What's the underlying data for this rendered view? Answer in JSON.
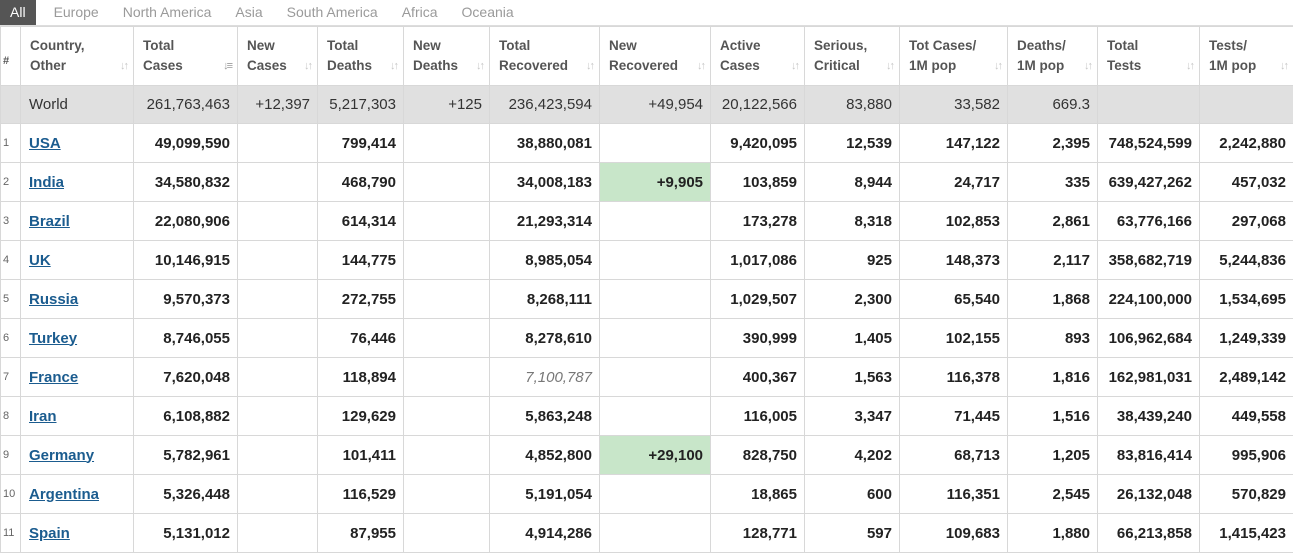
{
  "tabs": [
    "All",
    "Europe",
    "North America",
    "Asia",
    "South America",
    "Africa",
    "Oceania"
  ],
  "columns": [
    {
      "l1": "#",
      "l2": ""
    },
    {
      "l1": "Country,",
      "l2": "Other"
    },
    {
      "l1": "Total",
      "l2": "Cases"
    },
    {
      "l1": "New",
      "l2": "Cases"
    },
    {
      "l1": "Total",
      "l2": "Deaths"
    },
    {
      "l1": "New",
      "l2": "Deaths"
    },
    {
      "l1": "Total",
      "l2": "Recovered"
    },
    {
      "l1": "New",
      "l2": "Recovered"
    },
    {
      "l1": "Active",
      "l2": "Cases"
    },
    {
      "l1": "Serious,",
      "l2": "Critical"
    },
    {
      "l1": "Tot Cases/",
      "l2": "1M pop"
    },
    {
      "l1": "Deaths/",
      "l2": "1M pop"
    },
    {
      "l1": "Total",
      "l2": "Tests"
    },
    {
      "l1": "Tests/",
      "l2": "1M pop"
    }
  ],
  "world": [
    "",
    "World",
    "261,763,463",
    "+12,397",
    "5,217,303",
    "+125",
    "236,423,594",
    "+49,954",
    "20,122,566",
    "83,880",
    "33,582",
    "669.3",
    "",
    ""
  ],
  "rows": [
    [
      "1",
      "USA",
      "49,099,590",
      "",
      "799,414",
      "",
      "38,880,081",
      "",
      "9,420,095",
      "12,539",
      "147,122",
      "2,395",
      "748,524,599",
      "2,242,880"
    ],
    [
      "2",
      "India",
      "34,580,832",
      "",
      "468,790",
      "",
      "34,008,183",
      "+9,905",
      "103,859",
      "8,944",
      "24,717",
      "335",
      "639,427,262",
      "457,032"
    ],
    [
      "3",
      "Brazil",
      "22,080,906",
      "",
      "614,314",
      "",
      "21,293,314",
      "",
      "173,278",
      "8,318",
      "102,853",
      "2,861",
      "63,776,166",
      "297,068"
    ],
    [
      "4",
      "UK",
      "10,146,915",
      "",
      "144,775",
      "",
      "8,985,054",
      "",
      "1,017,086",
      "925",
      "148,373",
      "2,117",
      "358,682,719",
      "5,244,836"
    ],
    [
      "5",
      "Russia",
      "9,570,373",
      "",
      "272,755",
      "",
      "8,268,111",
      "",
      "1,029,507",
      "2,300",
      "65,540",
      "1,868",
      "224,100,000",
      "1,534,695"
    ],
    [
      "6",
      "Turkey",
      "8,746,055",
      "",
      "76,446",
      "",
      "8,278,610",
      "",
      "390,999",
      "1,405",
      "102,155",
      "893",
      "106,962,684",
      "1,249,339"
    ],
    [
      "7",
      "France",
      "7,620,048",
      "",
      "118,894",
      "",
      "7,100,787",
      "",
      "400,367",
      "1,563",
      "116,378",
      "1,816",
      "162,981,031",
      "2,489,142"
    ],
    [
      "8",
      "Iran",
      "6,108,882",
      "",
      "129,629",
      "",
      "5,863,248",
      "",
      "116,005",
      "3,347",
      "71,445",
      "1,516",
      "38,439,240",
      "449,558"
    ],
    [
      "9",
      "Germany",
      "5,782,961",
      "",
      "101,411",
      "",
      "4,852,800",
      "+29,100",
      "828,750",
      "4,202",
      "68,713",
      "1,205",
      "83,816,414",
      "995,906"
    ],
    [
      "10",
      "Argentina",
      "5,326,448",
      "",
      "116,529",
      "",
      "5,191,054",
      "",
      "18,865",
      "600",
      "116,351",
      "2,545",
      "26,132,048",
      "570,829"
    ],
    [
      "11",
      "Spain",
      "5,131,012",
      "",
      "87,955",
      "",
      "4,914,286",
      "",
      "128,771",
      "597",
      "109,683",
      "1,880",
      "66,213,858",
      "1,415,423"
    ]
  ],
  "colors": {
    "new_recovered_highlight": "#c8e6c9",
    "world_row_bg": "#e0e0e0",
    "active_tab_bg": "#555555",
    "link": "#1b5c8f"
  }
}
